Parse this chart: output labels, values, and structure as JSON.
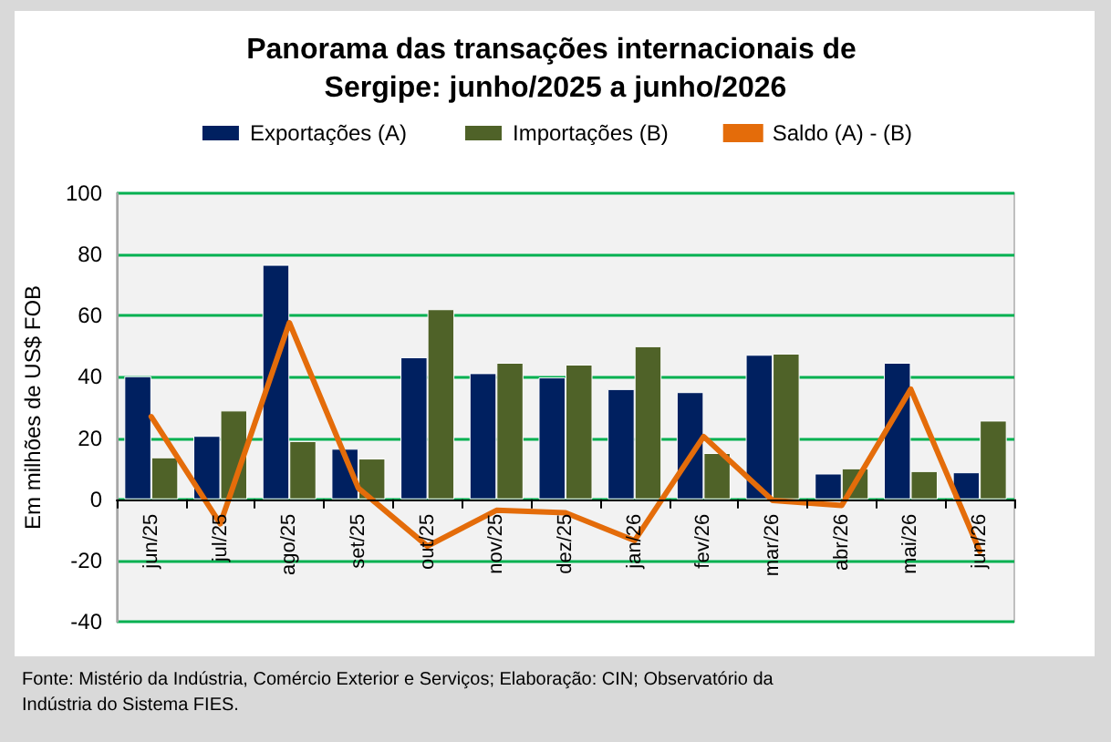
{
  "chart_data": {
    "type": "bar",
    "title": "Panorama das transações internacionais de Sergipe: junho/2025 a junho/2026",
    "ylabel": "Em milhões de US$ FOB",
    "categories": [
      "jun/25",
      "jul/25",
      "ago/25",
      "set/25",
      "out/25",
      "nov/25",
      "dez/25",
      "jan/26",
      "fev/26",
      "mar/26",
      "abr/26",
      "mai/26",
      "jun/26"
    ],
    "series": [
      {
        "name": "Exportações (A)",
        "color": "#002060",
        "values": [
          40.2,
          20.7,
          76.6,
          16.5,
          46.4,
          41.2,
          39.8,
          36.0,
          35.0,
          47.2,
          8.4,
          44.6,
          8.8
        ]
      },
      {
        "name": "Importações (B)",
        "color": "#4f6228",
        "values": [
          13.7,
          29.0,
          19.0,
          13.3,
          62.1,
          44.6,
          44.0,
          50.0,
          15.1,
          47.6,
          10.1,
          9.2,
          25.7
        ]
      },
      {
        "name": "Saldo (A) - (B)",
        "type": "line",
        "color": "#e46c0a",
        "values": [
          27.0,
          -8.0,
          57.7,
          3.6,
          -15.3,
          -3.6,
          -4.4,
          -13.5,
          20.5,
          -0.4,
          -2.0,
          36.0,
          -17.0
        ]
      }
    ],
    "ylim": [
      -40,
      100
    ],
    "yticks": [
      -40,
      -20,
      0,
      20,
      40,
      60,
      80,
      100
    ],
    "grid": "y",
    "legend": "top",
    "marker": "none",
    "line_style": "solid",
    "annotations": [
      "Fonte: Mistério da Indústria, Comércio Exterior e Serviços; Elaboração: CIN; Observatório da Indústria do Sistema FIES."
    ]
  }
}
